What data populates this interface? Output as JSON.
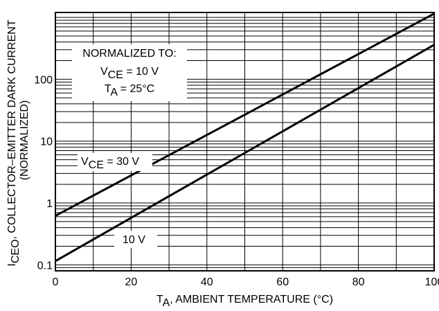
{
  "chart_data": {
    "type": "line",
    "title": "",
    "xlabel": "T",
    "xlabel_sub": "A",
    "xlabel_rest": ", AMBIENT TEMPERATURE (°C)",
    "ylabel_main": "I",
    "ylabel_sub": "CEO",
    "ylabel_rest": ", COLLECTOR–EMITTER DARK CURRENT",
    "ylabel_line2": "(NORMALIZED)",
    "xlim": [
      0,
      100
    ],
    "ylim": [
      0.08,
      1200
    ],
    "yscale": "log",
    "grid": true,
    "x_ticks": [
      {
        "value": 0,
        "label": "0"
      },
      {
        "value": 20,
        "label": "20"
      },
      {
        "value": 40,
        "label": "40"
      },
      {
        "value": 60,
        "label": "60"
      },
      {
        "value": 80,
        "label": "80"
      },
      {
        "value": 100,
        "label": "100"
      }
    ],
    "y_ticks": [
      {
        "value": 0.1,
        "label": "0.1"
      },
      {
        "value": 1,
        "label": "1"
      },
      {
        "value": 10,
        "label": "10"
      },
      {
        "value": 100,
        "label": "100"
      }
    ],
    "series": [
      {
        "name": "VCE = 30 V",
        "color": "#000000",
        "x": [
          0,
          100
        ],
        "y": [
          0.62,
          1150
        ]
      },
      {
        "name": "10 V",
        "color": "#000000",
        "x": [
          0,
          100
        ],
        "y": [
          0.115,
          360
        ]
      }
    ],
    "annotations": {
      "normalized_heading": "NORMALIZED TO:",
      "normalized_vce_main": "V",
      "normalized_vce_sub": "CE",
      "normalized_vce_rest": " = 10 V",
      "normalized_ta_main": "T",
      "normalized_ta_sub": "A",
      "normalized_ta_rest": " = 25°C",
      "label_vce30_main": "V",
      "label_vce30_sub": "CE",
      "label_vce30_rest": " = 30 V",
      "label_10v": "10 V"
    }
  }
}
